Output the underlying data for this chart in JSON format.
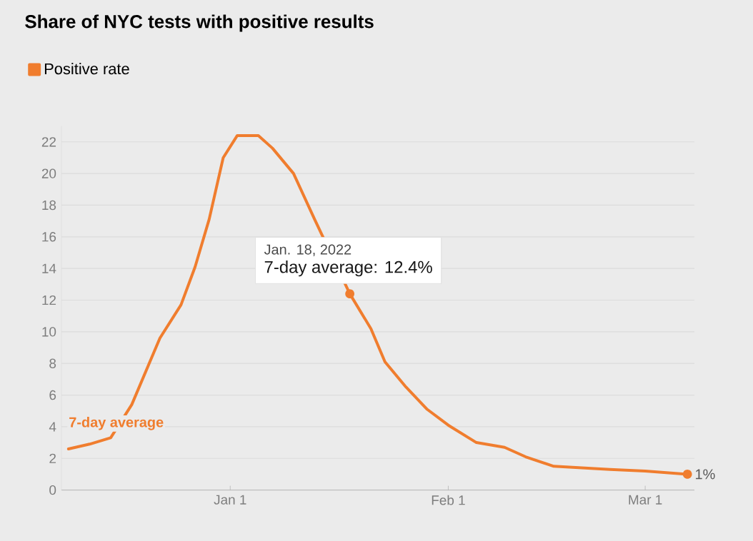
{
  "chart_data": {
    "type": "line",
    "title": "Share of NYC tests with positive results",
    "x": [
      "2021-12-09",
      "2021-12-12",
      "2021-12-15",
      "2021-12-18",
      "2021-12-22",
      "2021-12-25",
      "2021-12-27",
      "2021-12-29",
      "2021-12-31",
      "2022-01-02",
      "2022-01-05",
      "2022-01-07",
      "2022-01-10",
      "2022-01-13",
      "2022-01-18",
      "2022-01-21",
      "2022-01-23",
      "2022-01-26",
      "2022-01-29",
      "2022-02-01",
      "2022-02-05",
      "2022-02-09",
      "2022-02-12",
      "2022-02-16",
      "2022-02-20",
      "2022-02-24",
      "2022-03-01",
      "2022-03-07"
    ],
    "series": [
      {
        "name": "Positive rate",
        "color": "#f07d2e",
        "values": [
          2.6,
          2.9,
          3.3,
          5.4,
          9.6,
          11.7,
          14.1,
          17.1,
          21.0,
          22.4,
          22.4,
          21.6,
          20.0,
          17.1,
          12.4,
          10.2,
          8.1,
          6.5,
          5.1,
          4.1,
          3.0,
          2.7,
          2.1,
          1.5,
          1.4,
          1.3,
          1.2,
          1.0
        ],
        "value_labels": [
          null,
          null,
          null,
          null,
          null,
          null,
          null,
          null,
          null,
          null,
          null,
          null,
          null,
          null,
          null,
          null,
          null,
          null,
          null,
          null,
          null,
          null,
          null,
          null,
          null,
          null,
          null,
          "1%"
        ]
      }
    ],
    "xlim": [
      "2021-12-08",
      "2022-03-08"
    ],
    "xticks": [
      {
        "value": "2022-01-01",
        "label": "Jan 1"
      },
      {
        "value": "2022-02-01",
        "label": "Feb 1"
      },
      {
        "value": "2022-03-01",
        "label": "Mar 1"
      }
    ],
    "ylim": [
      0,
      23
    ],
    "yticks": [
      0,
      2,
      4,
      6,
      8,
      10,
      12,
      14,
      16,
      18,
      20,
      22
    ],
    "grid": "y",
    "legend": "top left",
    "marker": "none",
    "line_style": "solid",
    "annotations": [
      {
        "text": "7-day average",
        "x": "2021-12-09",
        "y": 2.6
      },
      {
        "text": "Jan. 18, 2022",
        "x": "2022-01-18",
        "y": 12.4
      },
      {
        "text": "7-day average: 12.4%",
        "x": "2022-01-18",
        "y": 12.4
      }
    ]
  }
}
